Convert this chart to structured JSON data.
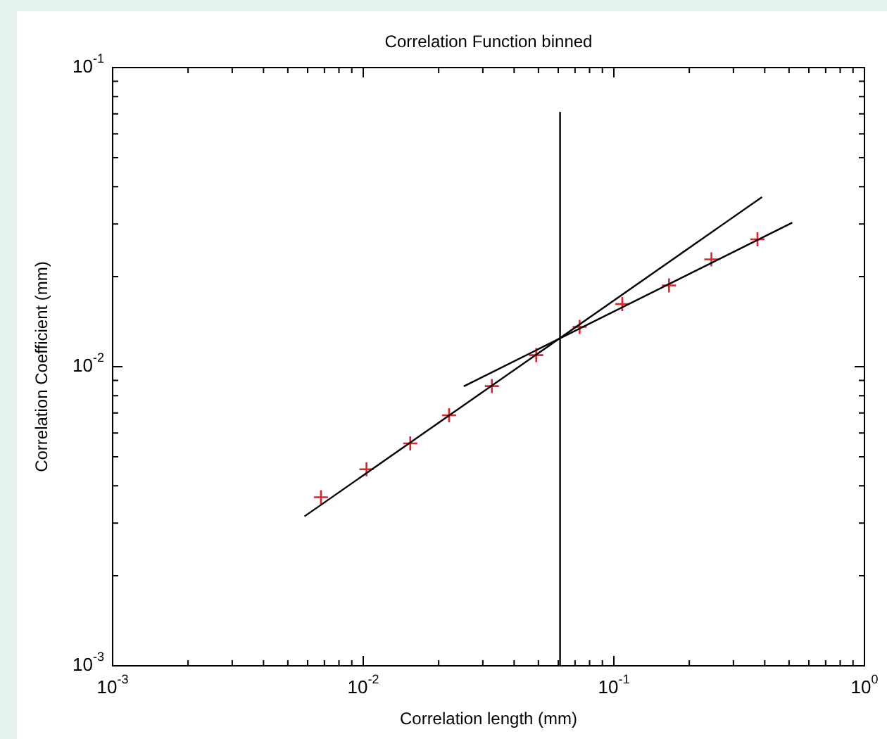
{
  "chart_data": {
    "type": "scatter",
    "title": "Correlation Function binned",
    "xlabel": "Correlation length (mm)",
    "ylabel": "Correlation Coefficient (mm)",
    "log": "xy",
    "grid": false,
    "legend": false,
    "xlim": [
      0.001,
      1
    ],
    "ylim": [
      0.001,
      0.1
    ],
    "xticks": [
      {
        "value": 0.001,
        "label": "10$^{-3}$"
      },
      {
        "value": 0.002,
        "label": null
      },
      {
        "value": 0.003,
        "label": null
      },
      {
        "value": 0.004,
        "label": null
      },
      {
        "value": 0.005,
        "label": null
      },
      {
        "value": 0.006,
        "label": null
      },
      {
        "value": 0.007,
        "label": null
      },
      {
        "value": 0.008,
        "label": null
      },
      {
        "value": 0.009,
        "label": null
      },
      {
        "value": 0.01,
        "label": "10$^{-2}$"
      },
      {
        "value": 0.02,
        "label": null
      },
      {
        "value": 0.03,
        "label": null
      },
      {
        "value": 0.04,
        "label": null
      },
      {
        "value": 0.05,
        "label": null
      },
      {
        "value": 0.06,
        "label": null
      },
      {
        "value": 0.07,
        "label": null
      },
      {
        "value": 0.08,
        "label": null
      },
      {
        "value": 0.09,
        "label": null
      },
      {
        "value": 0.1,
        "label": "10$^{-1}$"
      },
      {
        "value": 0.2,
        "label": null
      },
      {
        "value": 0.3,
        "label": null
      },
      {
        "value": 0.4,
        "label": null
      },
      {
        "value": 0.5,
        "label": null
      },
      {
        "value": 0.6,
        "label": null
      },
      {
        "value": 0.7,
        "label": null
      },
      {
        "value": 0.8,
        "label": null
      },
      {
        "value": 0.9,
        "label": null
      },
      {
        "value": 1,
        "label": "10$^{0}$"
      }
    ],
    "yticks": [
      {
        "value": 0.001,
        "label": "10$^{-3}$"
      },
      {
        "value": 0.002,
        "label": null
      },
      {
        "value": 0.003,
        "label": null
      },
      {
        "value": 0.004,
        "label": null
      },
      {
        "value": 0.005,
        "label": null
      },
      {
        "value": 0.006,
        "label": null
      },
      {
        "value": 0.007,
        "label": null
      },
      {
        "value": 0.008,
        "label": null
      },
      {
        "value": 0.009,
        "label": null
      },
      {
        "value": 0.01,
        "label": "10$^{-2}$"
      },
      {
        "value": 0.02,
        "label": null
      },
      {
        "value": 0.03,
        "label": null
      },
      {
        "value": 0.04,
        "label": null
      },
      {
        "value": 0.05,
        "label": null
      },
      {
        "value": 0.06,
        "label": null
      },
      {
        "value": 0.07,
        "label": null
      },
      {
        "value": 0.08,
        "label": null
      },
      {
        "value": 0.09,
        "label": null
      },
      {
        "value": 0.1,
        "label": "10$^{-1}$"
      }
    ],
    "series": [
      {
        "type": "line",
        "color": "#000000",
        "marker": "none",
        "x": [
          0.00583,
          0.39
        ],
        "values": [
          0.00316,
          0.0369
        ]
      },
      {
        "type": "line",
        "color": "#000000",
        "marker": "none",
        "x": [
          0.0252,
          0.515
        ],
        "values": [
          0.0086,
          0.0303
        ]
      },
      {
        "type": "line",
        "color": "#000000",
        "marker": "none",
        "x": [
          0.061,
          0.061
        ],
        "values": [
          0.0707,
          0.001
        ]
      },
      {
        "type": "scatter",
        "color": "#e8202a",
        "marker": "cross",
        "x": [
          0.00678,
          0.0103,
          0.0154,
          0.022,
          0.0326,
          0.049,
          0.073,
          0.108,
          0.166,
          0.245,
          0.374
        ],
        "values": [
          0.00366,
          0.00454,
          0.00554,
          0.00688,
          0.00861,
          0.01093,
          0.01358,
          0.01619,
          0.0187,
          0.02284,
          0.02667
        ]
      }
    ]
  }
}
